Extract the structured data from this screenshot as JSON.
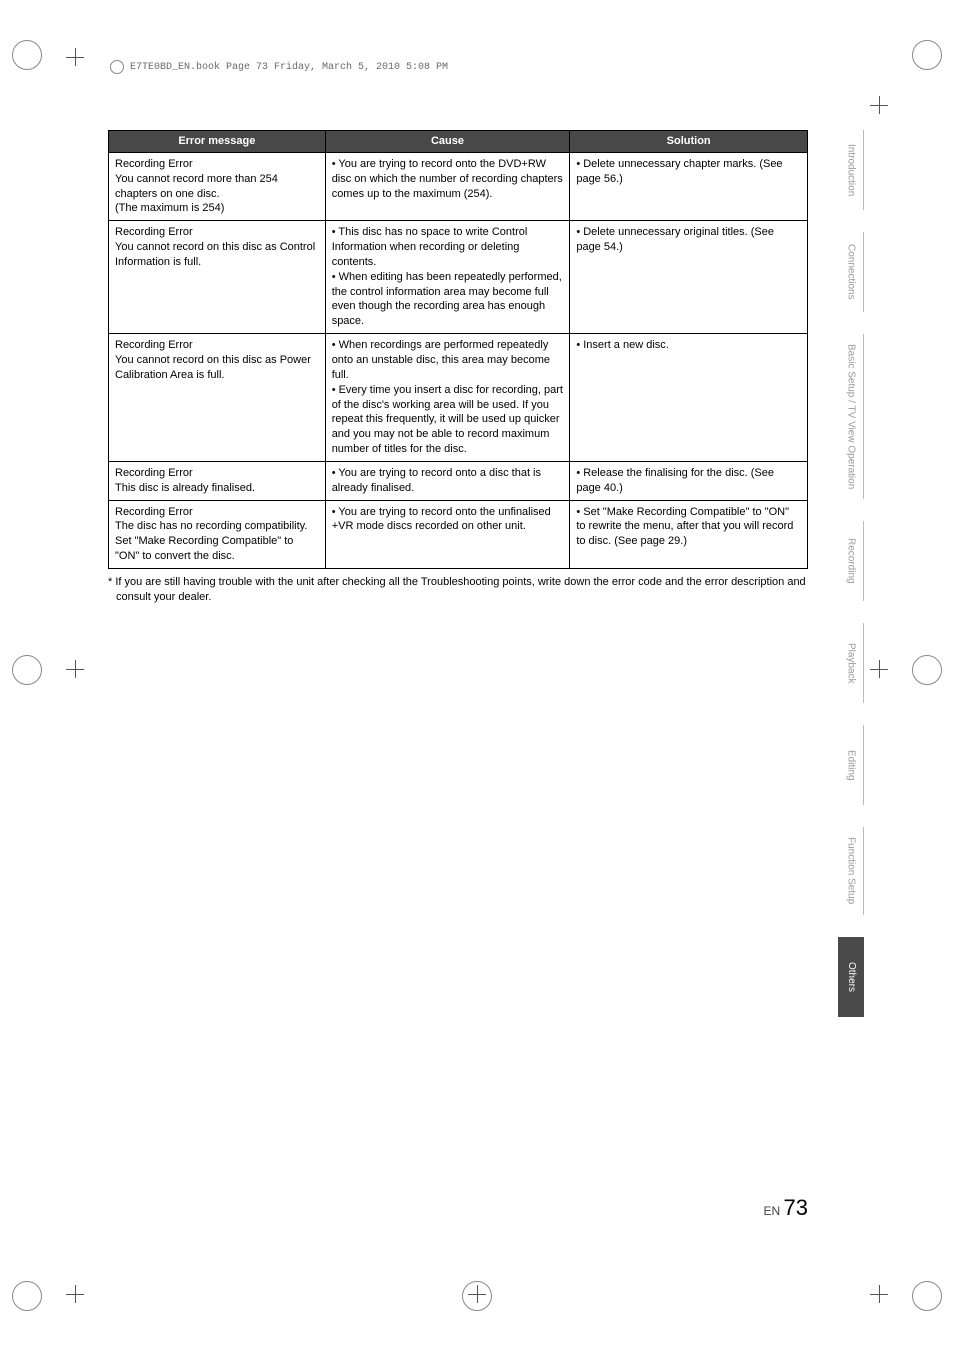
{
  "running_head": "E7TE0BD_EN.book  Page 73  Friday, March 5, 2010  5:08 PM",
  "table": {
    "headers": [
      "Error message",
      "Cause",
      "Solution"
    ],
    "rows": [
      {
        "msg_title": "Recording Error",
        "msg_body": "You cannot record more than 254 chapters on one disc.\n(The maximum is 254)",
        "cause": "• You are trying to record onto the DVD+RW disc on which the number of recording chapters comes up to the maximum (254).",
        "solution": "• Delete unnecessary chapter marks. (See page 56.)"
      },
      {
        "msg_title": "Recording Error",
        "msg_body": "You cannot record on this disc as Control Information is full.",
        "cause": "• This disc has no space to write Control Information when recording or deleting contents.\n• When editing has been repeatedly performed, the control information area may become full even though the recording area has enough space.",
        "solution": "• Delete unnecessary original titles. (See page 54.)"
      },
      {
        "msg_title": "Recording Error",
        "msg_body": "You cannot record on this disc as Power Calibration Area is full.",
        "cause": "• When recordings are performed repeatedly onto an unstable disc, this area may become full.\n• Every time you insert a disc for recording, part of the disc's working area will be used. If you repeat this frequently, it will be used up quicker and you may not be able to record maximum number of titles for the disc.",
        "solution": "• Insert a new disc."
      },
      {
        "msg_title": "Recording Error",
        "msg_body": "This disc is already finalised.",
        "cause": "• You are trying to record onto a disc that is already finalised.",
        "solution": "• Release the finalising for the disc. (See page 40.)"
      },
      {
        "msg_title": "Recording Error",
        "msg_body": "The disc has no recording compatibility.\nSet \"Make Recording Compatible\" to \"ON\" to convert the disc.",
        "cause": "• You are trying to record onto the unfinalised +VR mode discs recorded on other unit.",
        "solution": "• Set \"Make Recording Compatible\" to \"ON\" to rewrite the menu, after that you will record to disc. (See page 29.)"
      }
    ]
  },
  "footnote": "* If you are still having trouble with the unit after checking all the Troubleshooting points, write down the error code and the error description and consult your dealer.",
  "tabs": [
    {
      "label": "Introduction",
      "active": false
    },
    {
      "label": "Connections",
      "active": false
    },
    {
      "label": "Basic Setup / TV View Operation",
      "active": false
    },
    {
      "label": "Recording",
      "active": false
    },
    {
      "label": "Playback",
      "active": false
    },
    {
      "label": "Editing",
      "active": false
    },
    {
      "label": "Function Setup",
      "active": false
    },
    {
      "label": "Others",
      "active": true
    }
  ],
  "footer": {
    "lang": "EN",
    "page": "73"
  },
  "colors": {
    "header_bg": "#484848",
    "header_fg": "#ffffff",
    "tab_inactive": "#9a9a9a",
    "tab_active_bg": "#4a4a4a",
    "border": "#000000"
  }
}
